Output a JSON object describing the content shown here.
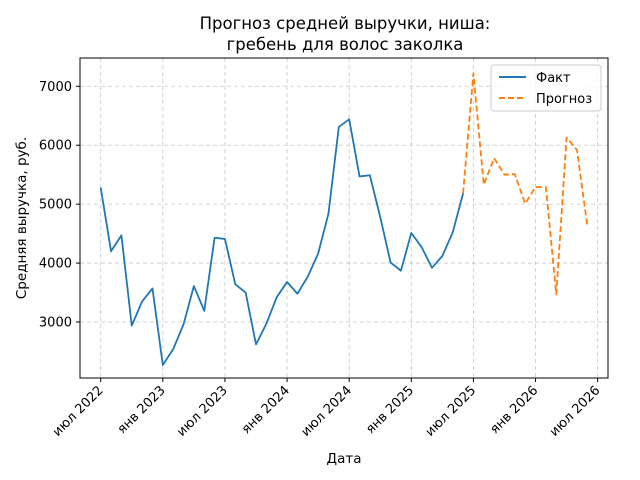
{
  "chart_data": {
    "type": "line",
    "title": "Прогноз средней выручки, ниша:",
    "subtitle": "гребень для волос заколка",
    "xlabel": "Дата",
    "ylabel": "Средняя выручка, руб.",
    "x_tick_labels": [
      "июл 2022",
      "янв 2023",
      "июл 2023",
      "янв 2024",
      "июл 2024",
      "янв 2025",
      "июл 2025",
      "янв 2026",
      "июл 2026"
    ],
    "x_tick_dates": [
      "2022-07",
      "2023-01",
      "2023-07",
      "2024-01",
      "2024-07",
      "2025-01",
      "2025-07",
      "2026-01",
      "2026-07"
    ],
    "xlim": [
      "2022-05",
      "2026-08"
    ],
    "ylim": [
      2050,
      7480
    ],
    "y_ticks": [
      3000,
      4000,
      5000,
      6000,
      7000
    ],
    "grid": true,
    "legend_position": "top-right",
    "series": [
      {
        "name": "Факт",
        "color": "#1f77b4",
        "style": "solid",
        "x": [
          "2022-07",
          "2022-08",
          "2022-09",
          "2022-10",
          "2022-11",
          "2022-12",
          "2023-01",
          "2023-02",
          "2023-03",
          "2023-04",
          "2023-05",
          "2023-06",
          "2023-07",
          "2023-08",
          "2023-09",
          "2023-10",
          "2023-11",
          "2023-12",
          "2024-01",
          "2024-02",
          "2024-03",
          "2024-04",
          "2024-05",
          "2024-06",
          "2024-07",
          "2024-08",
          "2024-09",
          "2024-10",
          "2024-11",
          "2024-12",
          "2025-01",
          "2025-02",
          "2025-03",
          "2025-04",
          "2025-05",
          "2025-06"
        ],
        "y": [
          5280,
          4200,
          4470,
          2940,
          3350,
          3570,
          2270,
          2540,
          2960,
          3610,
          3190,
          4430,
          4410,
          3640,
          3500,
          2620,
          2970,
          3420,
          3680,
          3480,
          3770,
          4160,
          4840,
          6310,
          6440,
          5470,
          5490,
          4780,
          4010,
          3870,
          4510,
          4270,
          3920,
          4120,
          4520,
          5180
        ]
      },
      {
        "name": "Прогноз",
        "color": "#ff7f0e",
        "style": "dashed",
        "x": [
          "2025-06",
          "2025-07",
          "2025-08",
          "2025-09",
          "2025-10",
          "2025-11",
          "2025-12",
          "2026-01",
          "2026-02",
          "2026-03",
          "2026-04",
          "2026-05",
          "2026-06"
        ],
        "y": [
          5180,
          7220,
          5330,
          5780,
          5500,
          5510,
          5010,
          5290,
          5290,
          3470,
          6130,
          5920,
          4640
        ]
      }
    ]
  }
}
